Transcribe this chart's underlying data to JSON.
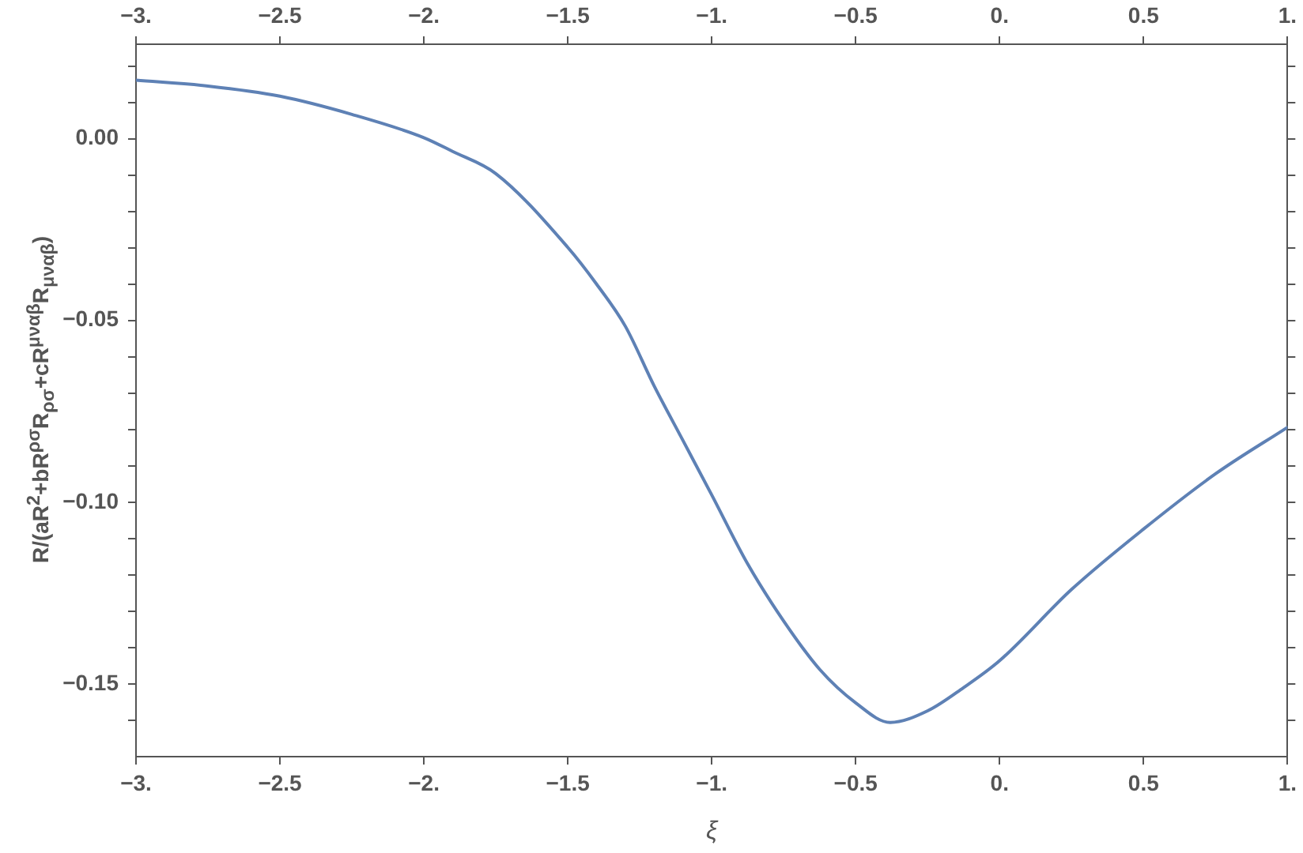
{
  "chart_data": {
    "type": "line",
    "xlabel": "ξ",
    "ylabel": "R/(aR$^{2}$+bR$^{ρσ}$R$_{ρσ}$+cR$^{μναβ}$R$_{μναβ}$)",
    "x": [
      -3,
      -2.75,
      -2.5,
      -2.25,
      -2,
      -1.9,
      -1.75,
      -1.5,
      -1.4,
      -1.3,
      -1.2,
      -1.1,
      -1,
      -0.875,
      -0.75,
      -0.625,
      -0.5,
      -0.38,
      -0.25,
      -0.125,
      0,
      0.25,
      0.5,
      0.75,
      1
    ],
    "series": [
      {
        "color": "#5e81b5",
        "values": [
          0.0161,
          0.0145,
          0.0117,
          0.0067,
          0.0003,
          -0.0035,
          -0.0096,
          -0.0299,
          -0.04,
          -0.0516,
          -0.068,
          -0.083,
          -0.098,
          -0.117,
          -0.1327,
          -0.146,
          -0.1552,
          -0.1606,
          -0.1574,
          -0.151,
          -0.1436,
          -0.124,
          -0.1074,
          -0.0922,
          -0.0794
        ]
      }
    ],
    "xlim": [
      -3,
      1
    ],
    "ylim": [
      -0.17,
      0.026
    ],
    "xticks": [
      {
        "value": -3,
        "label": "−3."
      },
      {
        "value": -2.5,
        "label": "−2.5"
      },
      {
        "value": -2,
        "label": "−2."
      },
      {
        "value": -1.5,
        "label": "−1.5"
      },
      {
        "value": -1,
        "label": "−1."
      },
      {
        "value": -0.5,
        "label": "−0.5"
      },
      {
        "value": 0,
        "label": "0."
      },
      {
        "value": 0.5,
        "label": "0.5"
      },
      {
        "value": 1,
        "label": "1."
      }
    ],
    "x2lim": [
      -3,
      1
    ],
    "x2ticks": [
      {
        "value": -3,
        "label": "−3."
      },
      {
        "value": -2.5,
        "label": "−2.5"
      },
      {
        "value": -2,
        "label": "−2."
      },
      {
        "value": -1.5,
        "label": "−1.5"
      },
      {
        "value": -1,
        "label": "−1."
      },
      {
        "value": -0.5,
        "label": "−0.5"
      },
      {
        "value": 0,
        "label": "0."
      },
      {
        "value": 0.5,
        "label": "0.5"
      },
      {
        "value": 1,
        "label": "1."
      }
    ],
    "yticks": [
      {
        "value": -0.16,
        "label": null
      },
      {
        "value": -0.15,
        "label": "−0.15"
      },
      {
        "value": -0.14,
        "label": null
      },
      {
        "value": -0.13,
        "label": null
      },
      {
        "value": -0.12,
        "label": null
      },
      {
        "value": -0.11,
        "label": null
      },
      {
        "value": -0.1,
        "label": "−0.10"
      },
      {
        "value": -0.09,
        "label": null
      },
      {
        "value": -0.08,
        "label": null
      },
      {
        "value": -0.07,
        "label": null
      },
      {
        "value": -0.06,
        "label": null
      },
      {
        "value": -0.05,
        "label": "−0.05"
      },
      {
        "value": -0.04,
        "label": null
      },
      {
        "value": -0.03,
        "label": null
      },
      {
        "value": -0.02,
        "label": null
      },
      {
        "value": -0.01,
        "label": null
      },
      {
        "value": 0,
        "label": "0.00"
      },
      {
        "value": 0.01,
        "label": null
      },
      {
        "value": 0.02,
        "label": null
      }
    ],
    "grid": false,
    "legend": false,
    "marker": "none",
    "line_style": "solid"
  }
}
